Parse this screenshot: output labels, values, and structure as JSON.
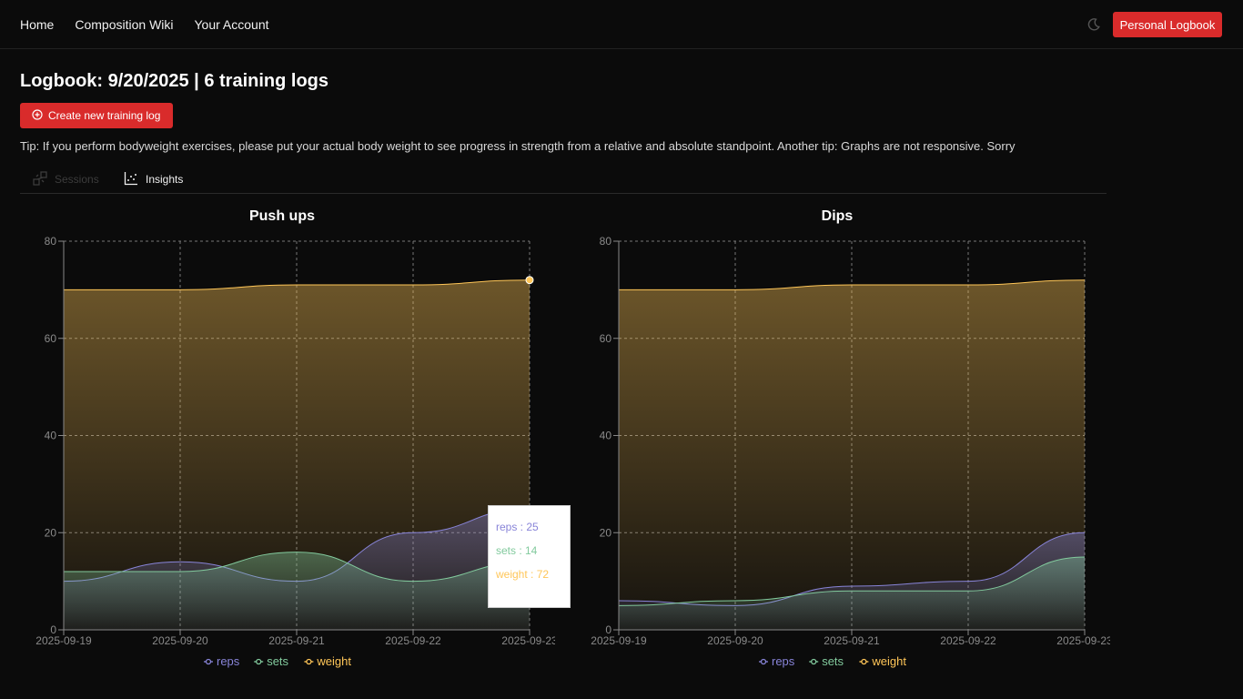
{
  "nav": {
    "links": [
      "Home",
      "Composition Wiki",
      "Your Account"
    ],
    "logbook_button": "Personal Logbook",
    "theme_icon": "moon-icon"
  },
  "page": {
    "title": "Logbook: 9/20/2025 | 6 training logs",
    "create_button": "Create new training log",
    "create_icon": "plus-circle-icon",
    "tip": "Tip: If you perform bodyweight exercises, please put your actual body weight to see progress in strength from a relative and absolute standpoint. Another tip: Graphs are not responsive. Sorry"
  },
  "tabs": [
    {
      "label": "Sessions",
      "icon": "sessions-icon",
      "active": false
    },
    {
      "label": "Insights",
      "icon": "scatter-chart-icon",
      "active": true
    }
  ],
  "colors": {
    "accent": "#d92b2b",
    "reps": "#8884d8",
    "sets": "#82ca9d",
    "weight": "#ffc658"
  },
  "chart_data": [
    {
      "type": "area",
      "title": "Push ups",
      "x": [
        "2025-09-19",
        "2025-09-20",
        "2025-09-21",
        "2025-09-22",
        "2025-09-23"
      ],
      "ylim": [
        0,
        80
      ],
      "yticks": [
        0,
        20,
        40,
        60,
        80
      ],
      "grid": true,
      "legend": "bottom",
      "series": [
        {
          "name": "reps",
          "values": [
            10,
            14,
            10,
            20,
            25
          ]
        },
        {
          "name": "sets",
          "values": [
            12,
            12,
            16,
            10,
            14
          ]
        },
        {
          "name": "weight",
          "values": [
            70,
            70,
            71,
            71,
            72
          ]
        }
      ],
      "tooltip": {
        "x": "2025-09-23",
        "lines": [
          "reps : 25",
          "sets : 14",
          "weight : 72"
        ]
      }
    },
    {
      "type": "area",
      "title": "Dips",
      "x": [
        "2025-09-19",
        "2025-09-20",
        "2025-09-21",
        "2025-09-22",
        "2025-09-23"
      ],
      "ylim": [
        0,
        80
      ],
      "yticks": [
        0,
        20,
        40,
        60,
        80
      ],
      "grid": true,
      "legend": "bottom",
      "series": [
        {
          "name": "reps",
          "values": [
            6,
            5,
            9,
            10,
            20
          ]
        },
        {
          "name": "sets",
          "values": [
            5,
            6,
            8,
            8,
            15
          ]
        },
        {
          "name": "weight",
          "values": [
            70,
            70,
            71,
            71,
            72
          ]
        }
      ]
    }
  ]
}
